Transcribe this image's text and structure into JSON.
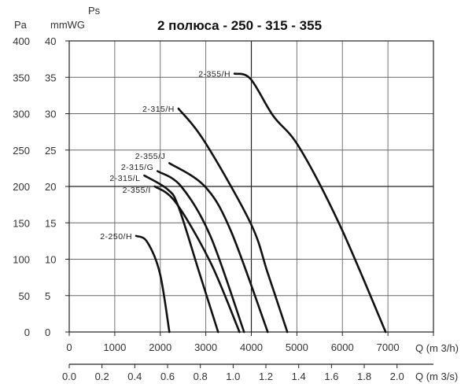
{
  "chart_data": {
    "type": "line",
    "title": "2 полюса - 250 - 315 - 355",
    "ylabel": "Ps",
    "y_units": [
      "Pa",
      "mmWG"
    ],
    "xlabel": "Q (m 3/h)",
    "x2label": "Q (m 3/s)",
    "xlim": [
      0,
      8000
    ],
    "ylim": [
      0,
      400
    ],
    "grid": true,
    "x_ticks": [
      "0",
      "1000",
      "2000",
      "3000",
      "4000",
      "5000",
      "6000",
      "7000"
    ],
    "x2_ticks": [
      "0.0",
      "0.2",
      "0.4",
      "0.6",
      "0.8",
      "1.0",
      "1.2",
      "1.4",
      "1.6",
      "1.8",
      "2.0"
    ],
    "y_ticks_pa": [
      "0",
      "50",
      "100",
      "150",
      "200",
      "250",
      "300",
      "350",
      "400"
    ],
    "y_ticks_mmwg": [
      "0",
      "5",
      "10",
      "15",
      "20",
      "25",
      "30",
      "35",
      "40"
    ],
    "line_color": "#111111",
    "series": [
      {
        "name": "2-355/H",
        "points": [
          [
            3630,
            355
          ],
          [
            3980,
            348
          ],
          [
            4480,
            297
          ],
          [
            5050,
            254
          ],
          [
            5950,
            146
          ],
          [
            6950,
            0
          ]
        ]
      },
      {
        "name": "2-315/H",
        "points": [
          [
            2400,
            307
          ],
          [
            2980,
            261
          ],
          [
            3980,
            150
          ],
          [
            4360,
            81
          ],
          [
            4790,
            0
          ]
        ]
      },
      {
        "name": "2-355/J",
        "points": [
          [
            2200,
            232
          ],
          [
            2980,
            200
          ],
          [
            3550,
            139
          ],
          [
            4360,
            0
          ]
        ]
      },
      {
        "name": "2-315/G",
        "points": [
          [
            1940,
            221
          ],
          [
            2460,
            200
          ],
          [
            3100,
            132
          ],
          [
            3840,
            0
          ]
        ]
      },
      {
        "name": "2-315/L",
        "points": [
          [
            1650,
            215
          ],
          [
            2160,
            196
          ],
          [
            2400,
            172
          ],
          [
            2860,
            81
          ],
          [
            3270,
            0
          ]
        ]
      },
      {
        "name": "2-355/I",
        "points": [
          [
            1880,
            200
          ],
          [
            2340,
            178
          ],
          [
            3100,
            96
          ],
          [
            3740,
            0
          ]
        ]
      },
      {
        "name": "2-250/H",
        "points": [
          [
            1470,
            132
          ],
          [
            1710,
            124
          ],
          [
            1990,
            81
          ],
          [
            2200,
            0
          ]
        ]
      }
    ]
  }
}
